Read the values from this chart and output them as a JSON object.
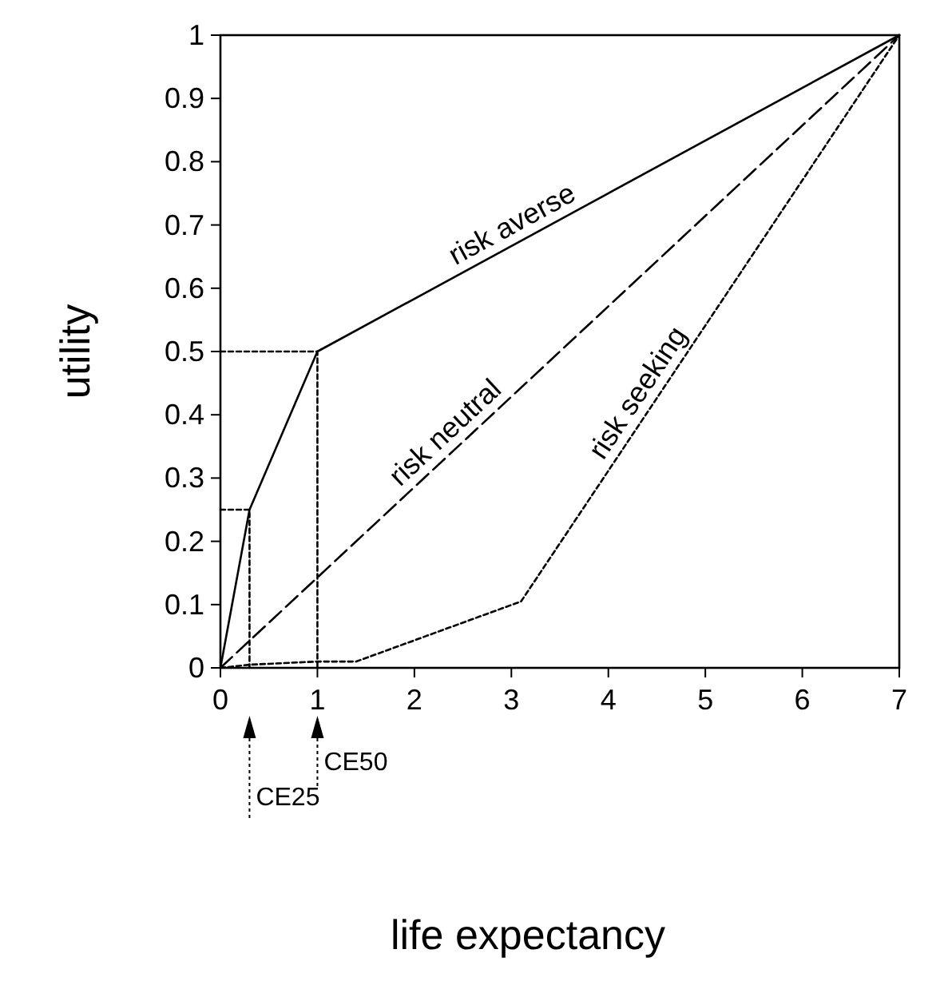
{
  "chart_data": {
    "type": "line",
    "xlabel": "life expectancy",
    "ylabel": "utility",
    "xlim": [
      0,
      7
    ],
    "xticks": [
      0,
      1,
      2,
      3,
      4,
      5,
      6,
      7
    ],
    "ylim": [
      0,
      1
    ],
    "yticks": [
      0,
      0.1,
      0.2,
      0.3,
      0.4,
      0.5,
      0.6,
      0.7,
      0.8,
      0.9,
      1
    ],
    "grid": false,
    "marker": "none",
    "series": [
      {
        "name": "risk averse",
        "color": "#000000",
        "line_style": "solid",
        "x": [
          0,
          0.3,
          1,
          7
        ],
        "values": [
          0,
          0.25,
          0.5,
          1
        ]
      },
      {
        "name": "risk neutral",
        "color": "#000000",
        "line_style": "dashed",
        "x": [
          0,
          7
        ],
        "values": [
          0,
          1
        ]
      },
      {
        "name": "risk seeking",
        "color": "#000000",
        "line_style": "dotted",
        "x": [
          0,
          0.3,
          1,
          1.4,
          3.1,
          7
        ],
        "values": [
          0,
          0.005,
          0.01,
          0.01,
          0.105,
          1
        ]
      },
      {
        "color": "#000000",
        "line_style": "dotted",
        "x": [
          0,
          0.3,
          0.3
        ],
        "values": [
          0.25,
          0.25,
          0
        ]
      },
      {
        "color": "#000000",
        "line_style": "dotted",
        "x": [
          0,
          1,
          1
        ],
        "values": [
          0.5,
          0.5,
          0
        ]
      }
    ],
    "annotations": [
      "CE25",
      "CE50"
    ]
  }
}
